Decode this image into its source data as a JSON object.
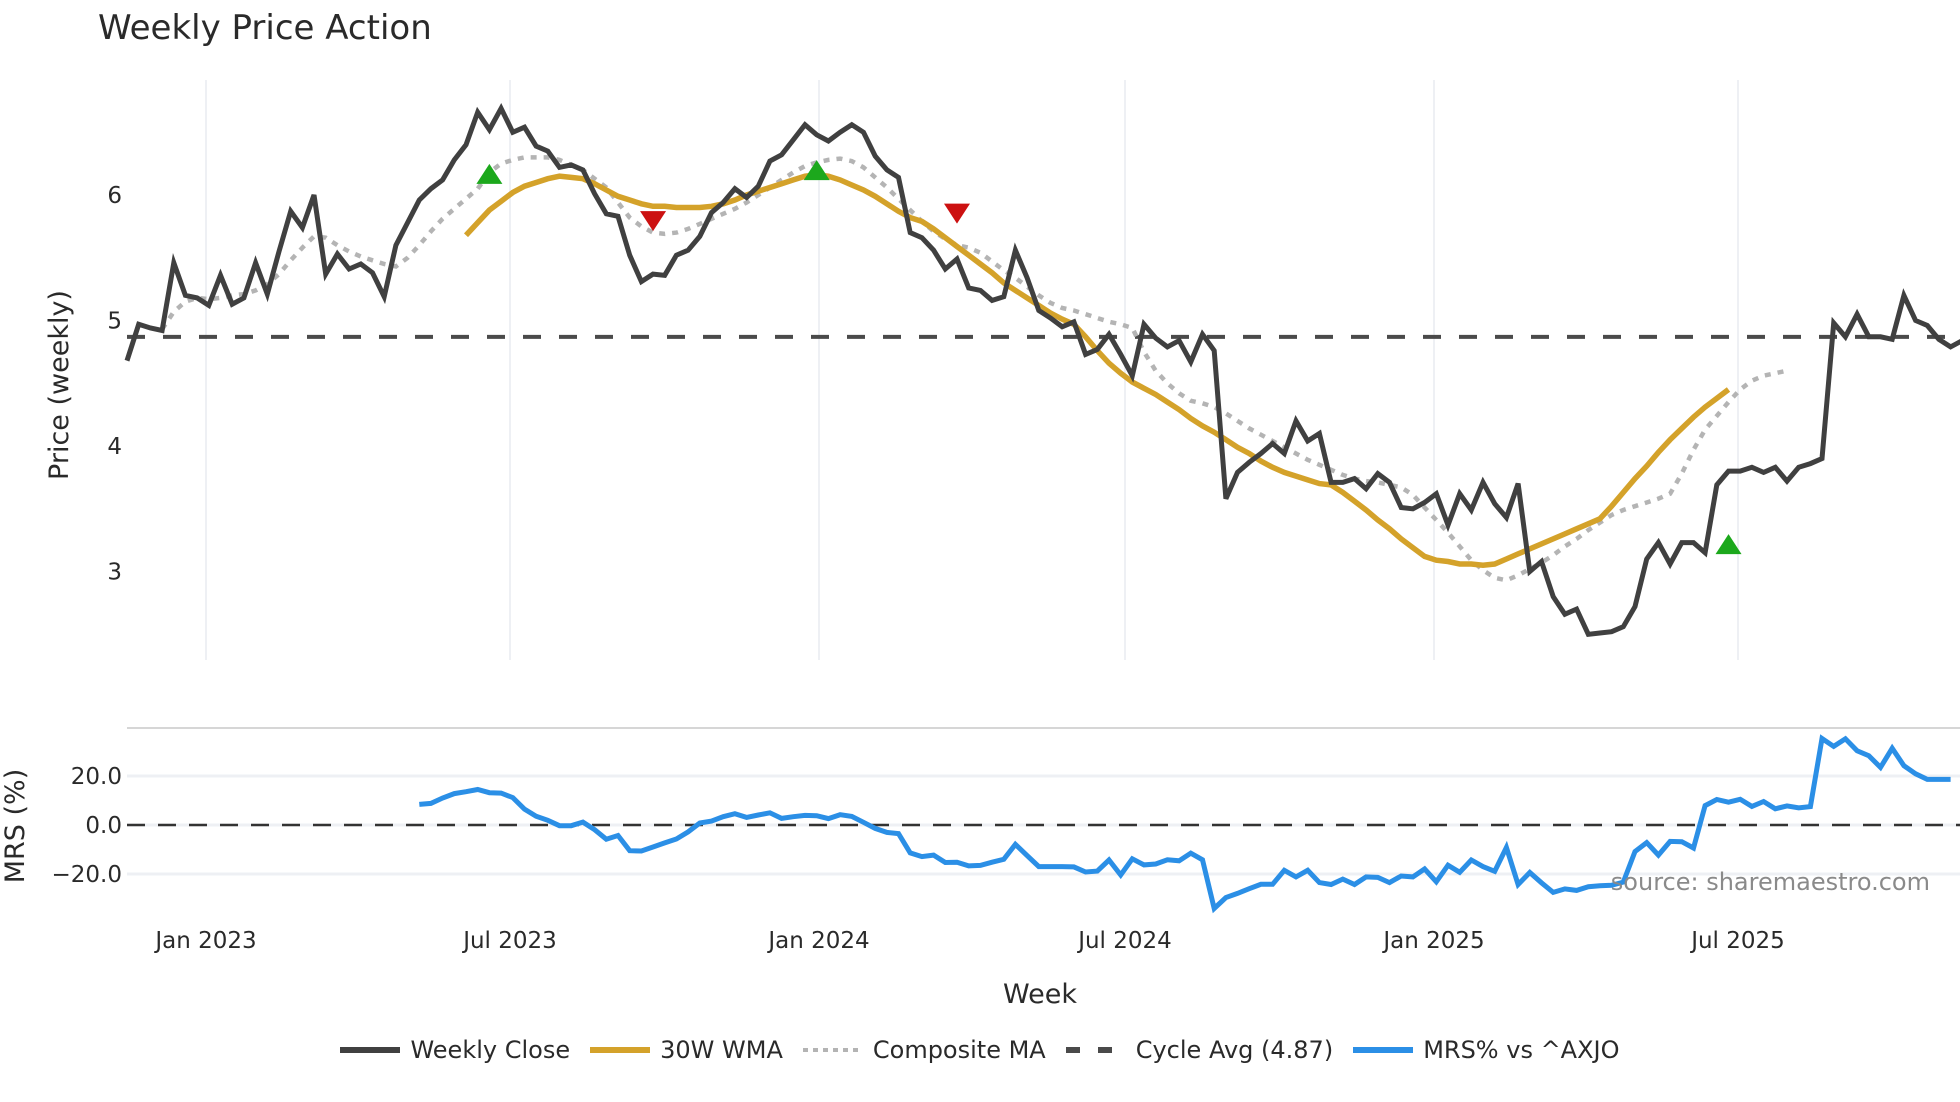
{
  "title": "Weekly Price Action",
  "source_note": "source: sharemaestro.com",
  "colors": {
    "close": "#404040",
    "wma": "#d4a22a",
    "composite": "#b4b4b4",
    "cycle": "#4a4a4a",
    "mrs": "#2b8fe6",
    "buy": "#1ca81c",
    "sell": "#cc1111",
    "grid": "#eef0f4"
  },
  "legend": [
    {
      "label": "Weekly Close",
      "key": "close",
      "style": "solid"
    },
    {
      "label": "30W WMA",
      "key": "wma",
      "style": "solid"
    },
    {
      "label": "Composite MA",
      "key": "composite",
      "style": "dotted"
    },
    {
      "label": "Cycle Avg (4.87)",
      "key": "cycle",
      "style": "dashed"
    },
    {
      "label": "MRS% vs ^AXJO",
      "key": "mrs",
      "style": "solid"
    }
  ],
  "chart_data": [
    {
      "type": "line",
      "title": "Weekly Price Action",
      "xlabel": "Week",
      "ylabel": "Price (weekly)",
      "ylim": [
        2.3,
        6.95
      ],
      "yticks": [
        3,
        4,
        5,
        6
      ],
      "x_tick_labels": [
        "Jan 2023",
        "Jul 2023",
        "Jan 2024",
        "Jul 2024",
        "Jan 2025",
        "Jul 2025"
      ],
      "x_start": "Nov 2022",
      "x_end": "Nov 2025",
      "grid": true,
      "legend_position": "bottom",
      "cycle_avg": 4.87,
      "series": [
        {
          "name": "Weekly Close",
          "start_week": 0,
          "values": [
            4.68,
            4.97,
            4.94,
            4.92,
            5.46,
            5.2,
            5.18,
            5.12,
            5.36,
            5.13,
            5.18,
            5.46,
            5.21,
            5.55,
            5.87,
            5.74,
            6.0,
            5.37,
            5.53,
            5.41,
            5.45,
            5.38,
            5.19,
            5.6,
            5.78,
            5.96,
            6.05,
            6.12,
            6.28,
            6.4,
            6.66,
            6.52,
            6.69,
            6.5,
            6.54,
            6.39,
            6.35,
            6.22,
            6.24,
            6.2,
            6.01,
            5.85,
            5.83,
            5.52,
            5.31,
            5.37,
            5.36,
            5.52,
            5.56,
            5.67,
            5.86,
            5.94,
            6.05,
            5.98,
            6.07,
            6.27,
            6.32,
            6.44,
            6.56,
            6.48,
            6.43,
            6.5,
            6.56,
            6.5,
            6.31,
            6.2,
            6.14,
            5.7,
            5.66,
            5.56,
            5.41,
            5.49,
            5.26,
            5.24,
            5.16,
            5.19,
            5.56,
            5.34,
            5.08,
            5.02,
            4.95,
            4.99,
            4.73,
            4.77,
            4.89,
            4.73,
            4.56,
            4.97,
            4.86,
            4.79,
            4.84,
            4.67,
            4.89,
            4.76,
            3.58,
            3.79,
            3.87,
            3.94,
            4.02,
            3.94,
            4.2,
            4.04,
            4.1,
            3.71,
            3.71,
            3.74,
            3.66,
            3.78,
            3.71,
            3.51,
            3.5,
            3.55,
            3.62,
            3.37,
            3.62,
            3.49,
            3.71,
            3.54,
            3.43,
            3.7,
            3.0,
            3.08,
            2.8,
            2.66,
            2.7,
            2.5,
            2.51,
            2.52,
            2.56,
            2.72,
            3.1,
            3.23,
            3.06,
            3.23,
            3.23,
            3.15,
            3.69,
            3.8,
            3.8,
            3.83,
            3.79,
            3.83,
            3.72,
            3.83,
            3.86,
            3.9,
            4.98,
            4.87,
            5.05,
            4.87,
            4.87,
            4.85,
            5.2,
            5.0,
            4.96,
            4.85,
            4.79,
            4.84
          ]
        },
        {
          "name": "30W WMA",
          "start_week": 29,
          "values": [
            5.68,
            5.78,
            5.88,
            5.95,
            6.02,
            6.07,
            6.1,
            6.13,
            6.15,
            6.14,
            6.13,
            6.09,
            6.04,
            5.99,
            5.96,
            5.93,
            5.91,
            5.91,
            5.9,
            5.9,
            5.9,
            5.91,
            5.93,
            5.96,
            6.0,
            6.03,
            6.06,
            6.09,
            6.12,
            6.15,
            6.16,
            6.15,
            6.12,
            6.08,
            6.04,
            5.99,
            5.93,
            5.87,
            5.82,
            5.79,
            5.73,
            5.66,
            5.59,
            5.52,
            5.45,
            5.38,
            5.3,
            5.24,
            5.18,
            5.12,
            5.06,
            5.01,
            4.97,
            4.87,
            4.76,
            4.66,
            4.58,
            4.51,
            4.46,
            4.41,
            4.35,
            4.29,
            4.22,
            4.16,
            4.11,
            4.05,
            3.99,
            3.94,
            3.88,
            3.83,
            3.79,
            3.76,
            3.73,
            3.7,
            3.69,
            3.63,
            3.56,
            3.49,
            3.41,
            3.34,
            3.26,
            3.19,
            3.12,
            3.09,
            3.08,
            3.06,
            3.06,
            3.05,
            3.06,
            3.1,
            3.14,
            3.18,
            3.22,
            3.26,
            3.3,
            3.34,
            3.38,
            3.42,
            3.52,
            3.63,
            3.74,
            3.84,
            3.95,
            4.05,
            4.14,
            4.23,
            4.31,
            4.38,
            4.45
          ]
        },
        {
          "name": "Composite MA",
          "start_week": 3,
          "values": [
            4.93,
            5.07,
            5.15,
            5.18,
            5.17,
            5.18,
            5.2,
            5.21,
            5.24,
            5.29,
            5.37,
            5.48,
            5.58,
            5.67,
            5.66,
            5.6,
            5.55,
            5.51,
            5.48,
            5.45,
            5.43,
            5.5,
            5.6,
            5.71,
            5.81,
            5.89,
            5.97,
            6.05,
            6.18,
            6.25,
            6.28,
            6.3,
            6.3,
            6.3,
            6.28,
            6.24,
            6.2,
            6.13,
            6.06,
            5.94,
            5.82,
            5.75,
            5.7,
            5.69,
            5.7,
            5.73,
            5.77,
            5.81,
            5.85,
            5.89,
            5.94,
            6.0,
            6.06,
            6.12,
            6.18,
            6.23,
            6.26,
            6.28,
            6.29,
            6.27,
            6.22,
            6.14,
            6.06,
            5.97,
            5.88,
            5.79,
            5.71,
            5.65,
            5.6,
            5.58,
            5.54,
            5.47,
            5.4,
            5.34,
            5.27,
            5.2,
            5.14,
            5.1,
            5.08,
            5.05,
            5.02,
            4.99,
            4.97,
            4.94,
            4.75,
            4.6,
            4.5,
            4.42,
            4.36,
            4.34,
            4.31,
            4.26,
            4.2,
            4.14,
            4.09,
            4.04,
            3.99,
            3.94,
            3.89,
            3.85,
            3.81,
            3.77,
            3.74,
            3.72,
            3.71,
            3.69,
            3.67,
            3.61,
            3.51,
            3.41,
            3.31,
            3.2,
            3.09,
            3.01,
            2.95,
            2.93,
            2.97,
            3.02,
            3.07,
            3.13,
            3.2,
            3.26,
            3.33,
            3.39,
            3.45,
            3.49,
            3.52,
            3.55,
            3.58,
            3.62,
            3.78,
            3.97,
            4.13,
            4.24,
            4.35,
            4.45,
            4.52,
            4.56,
            4.58,
            4.6
          ]
        },
        {
          "name": "Cycle Avg (4.87)",
          "constant": 4.87
        }
      ],
      "markers": [
        {
          "type": "buy",
          "week": 31,
          "price": 6.16
        },
        {
          "type": "sell",
          "week": 45,
          "price": 5.8
        },
        {
          "type": "buy",
          "week": 59,
          "price": 6.19
        },
        {
          "type": "sell",
          "week": 71,
          "price": 5.86
        },
        {
          "type": "buy",
          "week": 137,
          "price": 3.21
        }
      ]
    },
    {
      "type": "line",
      "ylabel": "MRS (%)",
      "ylim": [
        -35,
        40
      ],
      "yticks": [
        -20,
        0,
        20
      ],
      "ytick_labels": [
        "−20.0",
        "0.0",
        "20.0"
      ],
      "zero_line": 0,
      "series": [
        {
          "name": "MRS% vs ^AXJO",
          "start_week": 25,
          "values": [
            8.4,
            8.8,
            11,
            12.8,
            13.6,
            14.5,
            13.2,
            13,
            11.2,
            6.5,
            3.6,
            1.9,
            -0.3,
            -0.3,
            1.2,
            -1.9,
            -5.8,
            -4.3,
            -10.5,
            -10.6,
            -9,
            -7.3,
            -5.7,
            -2.8,
            0.8,
            1.6,
            3.4,
            4.6,
            3.1,
            4.1,
            5,
            2.7,
            3.4,
            3.9,
            3.8,
            2.6,
            4.2,
            3.5,
            1.1,
            -1.4,
            -3,
            -3.5,
            -11.4,
            -12.9,
            -12.3,
            -15.3,
            -15.2,
            -16.7,
            -16.5,
            -15.2,
            -14,
            -7.9,
            -12.5,
            -17,
            -17,
            -17,
            -17.1,
            -19.2,
            -18.8,
            -14.3,
            -20.4,
            -13.8,
            -16.3,
            -15.9,
            -14.2,
            -14.6,
            -11.5,
            -14.2,
            -34.1,
            -29.6,
            -27.9,
            -26,
            -24.2,
            -24.2,
            -18.5,
            -21.2,
            -18.5,
            -23.5,
            -24.3,
            -22.1,
            -24.3,
            -21.2,
            -21.4,
            -23.5,
            -20.8,
            -21.2,
            -17.9,
            -23.2,
            -16.4,
            -19.3,
            -14.3,
            -17,
            -18.9,
            -9.2,
            -24.3,
            -19.4,
            -23.6,
            -27.5,
            -26.1,
            -26.7,
            -25.2,
            -24.8,
            -24.6,
            -23.3,
            -10.8,
            -7.2,
            -12.3,
            -6.7,
            -6.8,
            -9.4,
            7.9,
            10.4,
            9.3,
            10.5,
            7.6,
            9.6,
            6.6,
            7.8,
            7,
            7.5,
            35.3,
            32.1,
            35.2,
            30.3,
            28.3,
            23.5,
            31.3,
            24.2,
            20.9,
            18.6,
            18.6,
            18.6
          ]
        }
      ]
    }
  ]
}
